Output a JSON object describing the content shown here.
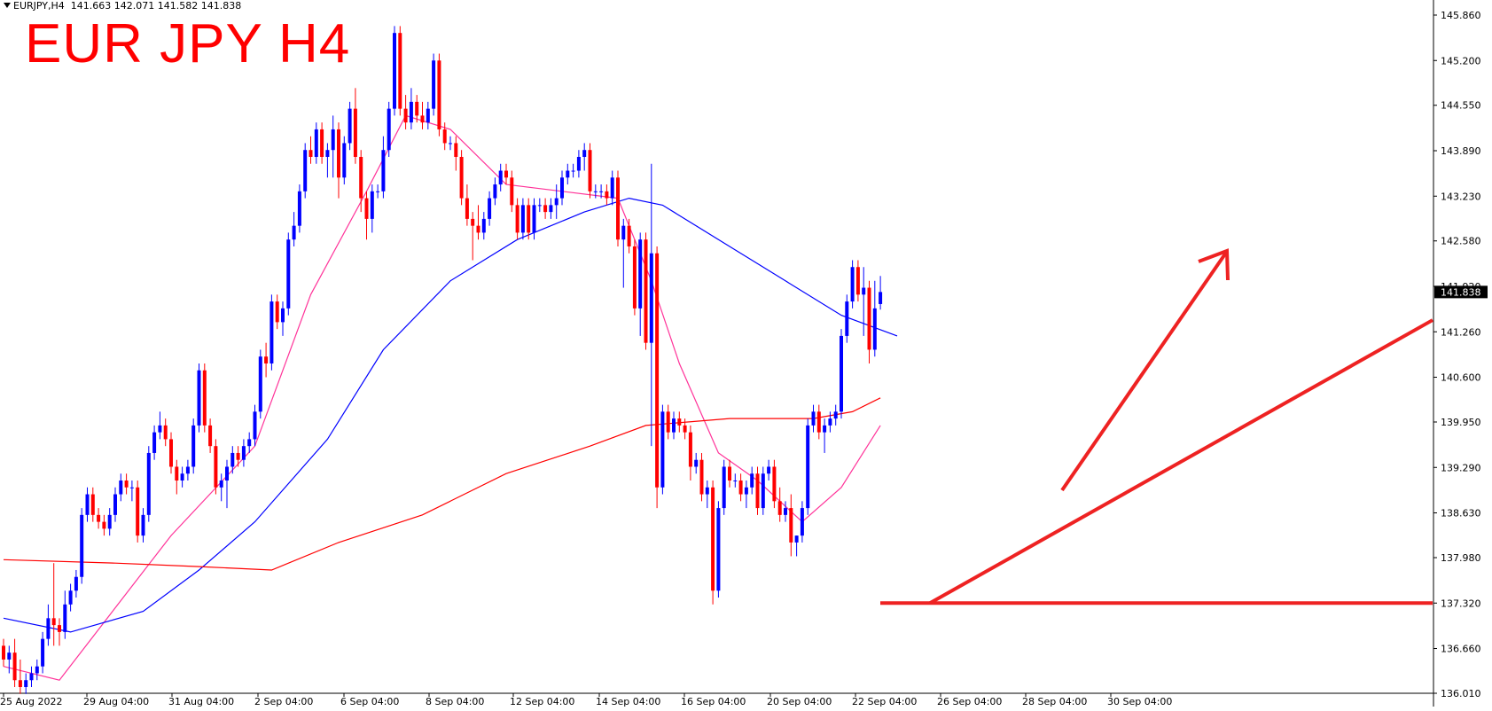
{
  "header": {
    "symbol": "EURJPY,H4",
    "ohlc": "141.663 142.071 141.582 141.838"
  },
  "title": "EUR JPY H4",
  "current_price_label": "141.838",
  "colors": {
    "bull": "#0000ff",
    "bear": "#ff0000",
    "ma_fast": "#ff3399",
    "ma_mid": "#0000ff",
    "ma_slow": "#ff0000",
    "annotation": "#ee2222"
  },
  "chart_data": {
    "type": "candlestick",
    "title": "EUR JPY H4",
    "symbol": "EURJPY",
    "timeframe": "H4",
    "ylim": [
      135.9,
      146.1
    ],
    "y_ticks": [
      145.86,
      145.2,
      144.55,
      143.89,
      143.23,
      142.58,
      141.92,
      141.26,
      140.6,
      139.95,
      139.29,
      138.63,
      137.98,
      137.32,
      136.66,
      136.01
    ],
    "x_tick_labels": [
      "25 Aug 2022",
      "29 Aug 04:00",
      "31 Aug 04:00",
      "2 Sep 04:00",
      "6 Sep 04:00",
      "8 Sep 04:00",
      "12 Sep 04:00",
      "14 Sep 04:00",
      "16 Sep 04:00",
      "20 Sep 04:00",
      "22 Sep 04:00",
      "26 Sep 04:00",
      "28 Sep 04:00",
      "30 Sep 04:00"
    ],
    "candles": [
      [
        136.7,
        136.8,
        136.4,
        136.5
      ],
      [
        136.5,
        136.7,
        136.3,
        136.6
      ],
      [
        136.6,
        136.8,
        136.1,
        136.2
      ],
      [
        136.2,
        136.5,
        136.0,
        136.1
      ],
      [
        136.1,
        136.3,
        136.0,
        136.2
      ],
      [
        136.2,
        136.4,
        136.1,
        136.3
      ],
      [
        136.3,
        136.5,
        136.2,
        136.4
      ],
      [
        136.4,
        136.9,
        136.3,
        136.8
      ],
      [
        136.8,
        137.3,
        136.7,
        137.1
      ],
      [
        137.1,
        137.9,
        136.7,
        137.0
      ],
      [
        137.0,
        137.1,
        136.7,
        136.9
      ],
      [
        136.9,
        137.5,
        136.8,
        137.3
      ],
      [
        137.3,
        137.6,
        137.2,
        137.5
      ],
      [
        137.5,
        137.8,
        137.4,
        137.7
      ],
      [
        137.7,
        138.7,
        137.6,
        138.6
      ],
      [
        138.6,
        139.0,
        138.5,
        138.9
      ],
      [
        138.9,
        139.0,
        138.5,
        138.6
      ],
      [
        138.6,
        138.7,
        138.4,
        138.5
      ],
      [
        138.5,
        138.6,
        138.3,
        138.4
      ],
      [
        138.4,
        138.7,
        138.3,
        138.6
      ],
      [
        138.6,
        139.0,
        138.5,
        138.9
      ],
      [
        138.9,
        139.2,
        138.8,
        139.1
      ],
      [
        139.1,
        139.2,
        138.9,
        139.0
      ],
      [
        139.0,
        139.1,
        138.8,
        139.0
      ],
      [
        139.0,
        139.1,
        138.2,
        138.3
      ],
      [
        138.3,
        138.7,
        138.2,
        138.6
      ],
      [
        138.6,
        139.6,
        138.5,
        139.5
      ],
      [
        139.5,
        139.9,
        139.4,
        139.8
      ],
      [
        139.8,
        140.1,
        139.7,
        139.9
      ],
      [
        139.9,
        140.0,
        139.6,
        139.7
      ],
      [
        139.7,
        139.8,
        139.2,
        139.3
      ],
      [
        139.3,
        139.4,
        138.9,
        139.1
      ],
      [
        139.1,
        139.3,
        139.0,
        139.2
      ],
      [
        139.2,
        139.4,
        139.1,
        139.3
      ],
      [
        139.3,
        140.0,
        139.2,
        139.9
      ],
      [
        139.9,
        140.8,
        139.8,
        140.7
      ],
      [
        140.7,
        140.8,
        139.8,
        139.9
      ],
      [
        139.9,
        140.0,
        139.5,
        139.6
      ],
      [
        139.6,
        139.7,
        138.9,
        139.0
      ],
      [
        139.0,
        139.2,
        138.8,
        139.1
      ],
      [
        139.1,
        139.4,
        138.7,
        139.3
      ],
      [
        139.3,
        139.6,
        139.2,
        139.5
      ],
      [
        139.5,
        139.6,
        139.3,
        139.4
      ],
      [
        139.4,
        139.7,
        139.3,
        139.6
      ],
      [
        139.6,
        139.8,
        139.5,
        139.7
      ],
      [
        139.7,
        140.2,
        139.6,
        140.1
      ],
      [
        140.1,
        141.0,
        140.0,
        140.9
      ],
      [
        140.9,
        141.1,
        140.6,
        140.8
      ],
      [
        140.8,
        141.8,
        140.7,
        141.7
      ],
      [
        141.7,
        141.8,
        141.3,
        141.4
      ],
      [
        141.4,
        141.7,
        141.2,
        141.6
      ],
      [
        141.6,
        142.7,
        141.5,
        142.6
      ],
      [
        142.6,
        143.0,
        142.5,
        142.8
      ],
      [
        142.8,
        143.4,
        142.7,
        143.3
      ],
      [
        143.3,
        144.0,
        143.2,
        143.9
      ],
      [
        143.9,
        144.1,
        143.7,
        143.8
      ],
      [
        143.8,
        144.3,
        143.7,
        144.2
      ],
      [
        144.2,
        144.3,
        143.7,
        143.8
      ],
      [
        143.8,
        144.0,
        143.5,
        143.9
      ],
      [
        143.9,
        144.4,
        143.5,
        144.2
      ],
      [
        144.2,
        144.3,
        143.2,
        143.5
      ],
      [
        143.5,
        144.1,
        143.4,
        144.0
      ],
      [
        144.0,
        144.6,
        143.9,
        144.5
      ],
      [
        144.5,
        144.8,
        143.7,
        143.8
      ],
      [
        143.8,
        143.9,
        143.0,
        143.2
      ],
      [
        143.2,
        143.3,
        142.6,
        142.9
      ],
      [
        142.9,
        143.4,
        142.7,
        143.3
      ],
      [
        143.3,
        143.4,
        143.2,
        143.3
      ],
      [
        143.3,
        144.1,
        143.2,
        143.9
      ],
      [
        143.9,
        144.6,
        143.8,
        144.5
      ],
      [
        144.5,
        145.7,
        144.4,
        145.6
      ],
      [
        145.6,
        145.7,
        144.4,
        144.5
      ],
      [
        144.5,
        144.7,
        144.2,
        144.3
      ],
      [
        144.3,
        144.8,
        144.2,
        144.6
      ],
      [
        144.6,
        144.7,
        144.3,
        144.4
      ],
      [
        144.4,
        144.6,
        144.2,
        144.3
      ],
      [
        144.3,
        144.6,
        144.2,
        144.5
      ],
      [
        144.5,
        145.3,
        144.4,
        145.2
      ],
      [
        145.2,
        145.3,
        144.1,
        144.2
      ],
      [
        144.2,
        144.3,
        143.9,
        144.0
      ],
      [
        144.0,
        144.1,
        143.9,
        144.0
      ],
      [
        144.0,
        144.1,
        143.6,
        143.8
      ],
      [
        143.8,
        143.9,
        143.1,
        143.2
      ],
      [
        143.2,
        143.4,
        142.8,
        142.9
      ],
      [
        142.9,
        143.0,
        142.3,
        142.8
      ],
      [
        142.8,
        143.1,
        142.6,
        142.7
      ],
      [
        142.7,
        143.0,
        142.6,
        142.9
      ],
      [
        142.9,
        143.3,
        142.8,
        143.2
      ],
      [
        143.2,
        143.5,
        143.1,
        143.4
      ],
      [
        143.4,
        143.7,
        143.3,
        143.6
      ],
      [
        143.6,
        143.7,
        143.4,
        143.5
      ],
      [
        143.5,
        143.6,
        143.0,
        143.1
      ],
      [
        143.1,
        143.2,
        142.6,
        142.7
      ],
      [
        142.7,
        143.2,
        142.6,
        143.1
      ],
      [
        143.1,
        143.2,
        142.6,
        142.7
      ],
      [
        142.7,
        143.2,
        142.6,
        143.1
      ],
      [
        143.1,
        143.2,
        143.0,
        143.1
      ],
      [
        143.1,
        143.2,
        142.9,
        143.0
      ],
      [
        143.0,
        143.2,
        142.9,
        143.1
      ],
      [
        143.1,
        143.4,
        142.9,
        143.2
      ],
      [
        143.2,
        143.6,
        143.1,
        143.5
      ],
      [
        143.5,
        143.7,
        143.4,
        143.6
      ],
      [
        143.6,
        143.7,
        143.5,
        143.6
      ],
      [
        143.6,
        143.9,
        143.5,
        143.8
      ],
      [
        143.8,
        144.0,
        143.6,
        143.9
      ],
      [
        143.9,
        144.0,
        143.2,
        143.3
      ],
      [
        143.3,
        143.4,
        143.2,
        143.3
      ],
      [
        143.3,
        143.4,
        143.2,
        143.3
      ],
      [
        143.3,
        143.4,
        143.1,
        143.2
      ],
      [
        143.2,
        143.6,
        143.1,
        143.5
      ],
      [
        143.5,
        143.6,
        142.5,
        142.6
      ],
      [
        142.6,
        142.9,
        141.9,
        142.8
      ],
      [
        142.8,
        142.9,
        142.4,
        142.5
      ],
      [
        142.5,
        142.6,
        141.5,
        141.6
      ],
      [
        141.6,
        142.7,
        141.2,
        142.6
      ],
      [
        142.6,
        142.7,
        141.0,
        141.1
      ],
      [
        141.1,
        143.7,
        139.6,
        142.4
      ],
      [
        142.4,
        142.5,
        138.7,
        139.0
      ],
      [
        139.0,
        140.2,
        138.9,
        140.1
      ],
      [
        140.1,
        140.2,
        139.7,
        139.8
      ],
      [
        139.8,
        140.1,
        139.7,
        140.0
      ],
      [
        140.0,
        140.1,
        139.8,
        139.9
      ],
      [
        139.9,
        140.0,
        139.7,
        139.8
      ],
      [
        139.8,
        139.9,
        139.1,
        139.3
      ],
      [
        139.3,
        139.5,
        139.2,
        139.4
      ],
      [
        139.4,
        139.5,
        138.8,
        138.9
      ],
      [
        138.9,
        139.1,
        138.7,
        139.0
      ],
      [
        139.0,
        139.1,
        137.3,
        137.5
      ],
      [
        137.5,
        138.8,
        137.4,
        138.7
      ],
      [
        138.7,
        139.4,
        138.6,
        139.3
      ],
      [
        139.3,
        139.4,
        139.0,
        139.1
      ],
      [
        139.1,
        139.2,
        139.0,
        139.1
      ],
      [
        139.1,
        139.2,
        138.8,
        138.9
      ],
      [
        138.9,
        139.1,
        138.7,
        139.0
      ],
      [
        139.0,
        139.3,
        138.9,
        139.2
      ],
      [
        139.2,
        139.3,
        138.6,
        138.7
      ],
      [
        138.7,
        139.3,
        138.6,
        139.2
      ],
      [
        139.2,
        139.4,
        139.1,
        139.3
      ],
      [
        139.3,
        139.4,
        138.7,
        138.8
      ],
      [
        138.8,
        139.0,
        138.5,
        138.6
      ],
      [
        138.6,
        138.8,
        138.5,
        138.7
      ],
      [
        138.7,
        138.9,
        138.0,
        138.2
      ],
      [
        138.2,
        138.3,
        138.0,
        138.3
      ],
      [
        138.3,
        138.8,
        138.2,
        138.7
      ],
      [
        138.7,
        140.0,
        138.6,
        139.9
      ],
      [
        139.9,
        140.2,
        139.8,
        140.1
      ],
      [
        140.1,
        140.2,
        139.7,
        139.8
      ],
      [
        139.8,
        140.0,
        139.5,
        139.9
      ],
      [
        139.9,
        140.1,
        139.8,
        140.0
      ],
      [
        140.0,
        140.2,
        139.9,
        140.1
      ],
      [
        140.1,
        141.3,
        140.0,
        141.2
      ],
      [
        141.2,
        141.8,
        141.1,
        141.7
      ],
      [
        141.7,
        142.3,
        141.6,
        142.2
      ],
      [
        142.2,
        142.3,
        141.7,
        141.8
      ],
      [
        141.8,
        142.2,
        141.2,
        141.9
      ],
      [
        141.9,
        142.0,
        140.8,
        141.0
      ],
      [
        141.0,
        142.0,
        140.9,
        141.6
      ],
      [
        141.663,
        142.071,
        141.582,
        141.838
      ]
    ],
    "moving_averages": [
      {
        "role": "fast",
        "points": [
          [
            0,
            136.4
          ],
          [
            10,
            136.2
          ],
          [
            30,
            138.3
          ],
          [
            45,
            139.6
          ],
          [
            55,
            141.8
          ],
          [
            65,
            143.3
          ],
          [
            72,
            144.4
          ],
          [
            80,
            144.2
          ],
          [
            90,
            143.4
          ],
          [
            100,
            143.3
          ],
          [
            110,
            143.2
          ],
          [
            116,
            142.0
          ],
          [
            121,
            140.8
          ],
          [
            128,
            139.5
          ],
          [
            135,
            139.1
          ],
          [
            143,
            138.5
          ],
          [
            150,
            139.0
          ],
          [
            157,
            139.9
          ]
        ]
      },
      {
        "role": "mid",
        "points": [
          [
            0,
            137.1
          ],
          [
            12,
            136.9
          ],
          [
            25,
            137.2
          ],
          [
            35,
            137.8
          ],
          [
            45,
            138.5
          ],
          [
            58,
            139.7
          ],
          [
            68,
            141.0
          ],
          [
            80,
            142.0
          ],
          [
            92,
            142.6
          ],
          [
            104,
            143.0
          ],
          [
            112,
            143.2
          ],
          [
            118,
            143.1
          ],
          [
            130,
            142.5
          ],
          [
            140,
            142.0
          ],
          [
            150,
            141.5
          ],
          [
            160,
            141.2
          ]
        ]
      },
      {
        "role": "slow",
        "points": [
          [
            0,
            137.95
          ],
          [
            20,
            137.9
          ],
          [
            35,
            137.85
          ],
          [
            48,
            137.8
          ],
          [
            60,
            138.2
          ],
          [
            75,
            138.6
          ],
          [
            90,
            139.2
          ],
          [
            105,
            139.6
          ],
          [
            115,
            139.9
          ],
          [
            130,
            140.0
          ],
          [
            145,
            140.0
          ],
          [
            152,
            140.1
          ],
          [
            157,
            140.3
          ]
        ]
      }
    ]
  }
}
